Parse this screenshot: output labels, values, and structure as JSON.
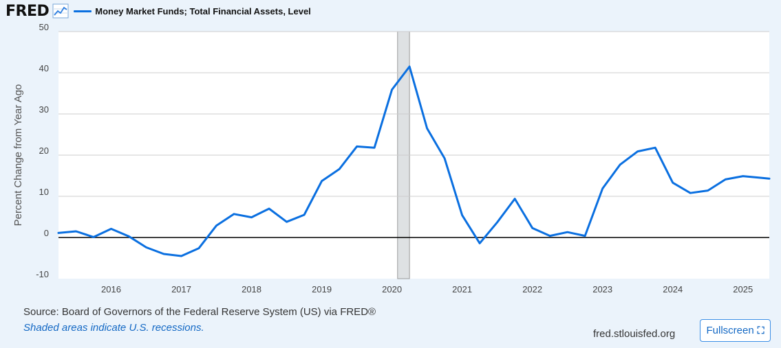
{
  "header": {
    "logo": "FRED",
    "legend_label": "Money Market Funds; Total Financial Assets, Level"
  },
  "footer": {
    "source": "Source: Board of Governors of the Federal Reserve System (US) via FRED®",
    "note": "Shaded areas indicate U.S. recessions.",
    "site": "fred.stlouisfed.org",
    "fullscreen_label": "Fullscreen"
  },
  "colors": {
    "line": "#0a6fe0",
    "recession": "#dee1e3",
    "zero_line": "#000000",
    "grid": "#cccccc"
  },
  "chart_data": {
    "type": "line",
    "ylabel": "Percent Change from Year Ago",
    "ylim": [
      -10,
      50
    ],
    "yticks": [
      -10,
      0,
      10,
      20,
      30,
      40,
      50
    ],
    "xlim": [
      2015.25,
      2025.375
    ],
    "xticks": [
      2016,
      2017,
      2018,
      2019,
      2020,
      2021,
      2022,
      2023,
      2024,
      2025
    ],
    "grid": true,
    "legend": "top-left",
    "recessions": [
      [
        2020.08,
        2020.25
      ]
    ],
    "series": [
      {
        "name": "Money Market Funds; Total Financial Assets, Level",
        "x": [
          2015.25,
          2015.5,
          2015.75,
          2016.0,
          2016.25,
          2016.5,
          2016.75,
          2017.0,
          2017.25,
          2017.5,
          2017.75,
          2018.0,
          2018.25,
          2018.5,
          2018.75,
          2019.0,
          2019.25,
          2019.5,
          2019.75,
          2020.0,
          2020.25,
          2020.5,
          2020.75,
          2021.0,
          2021.25,
          2021.5,
          2021.75,
          2022.0,
          2022.25,
          2022.5,
          2022.75,
          2023.0,
          2023.25,
          2023.5,
          2023.75,
          2024.0,
          2024.25,
          2024.5,
          2024.75,
          2025.0,
          2025.25,
          2025.375
        ],
        "values": [
          1.1,
          1.5,
          0.1,
          2.1,
          0.3,
          -2.4,
          -4.0,
          -4.5,
          -2.6,
          2.9,
          5.7,
          4.9,
          7.0,
          3.8,
          5.5,
          13.7,
          16.6,
          22.1,
          21.8,
          35.9,
          41.5,
          26.5,
          19.2,
          5.4,
          -1.4,
          3.7,
          9.4,
          2.3,
          0.4,
          1.3,
          0.4,
          11.9,
          17.7,
          20.9,
          21.8,
          13.3,
          10.8,
          11.4,
          14.1,
          14.9,
          14.5,
          14.3
        ]
      }
    ]
  }
}
